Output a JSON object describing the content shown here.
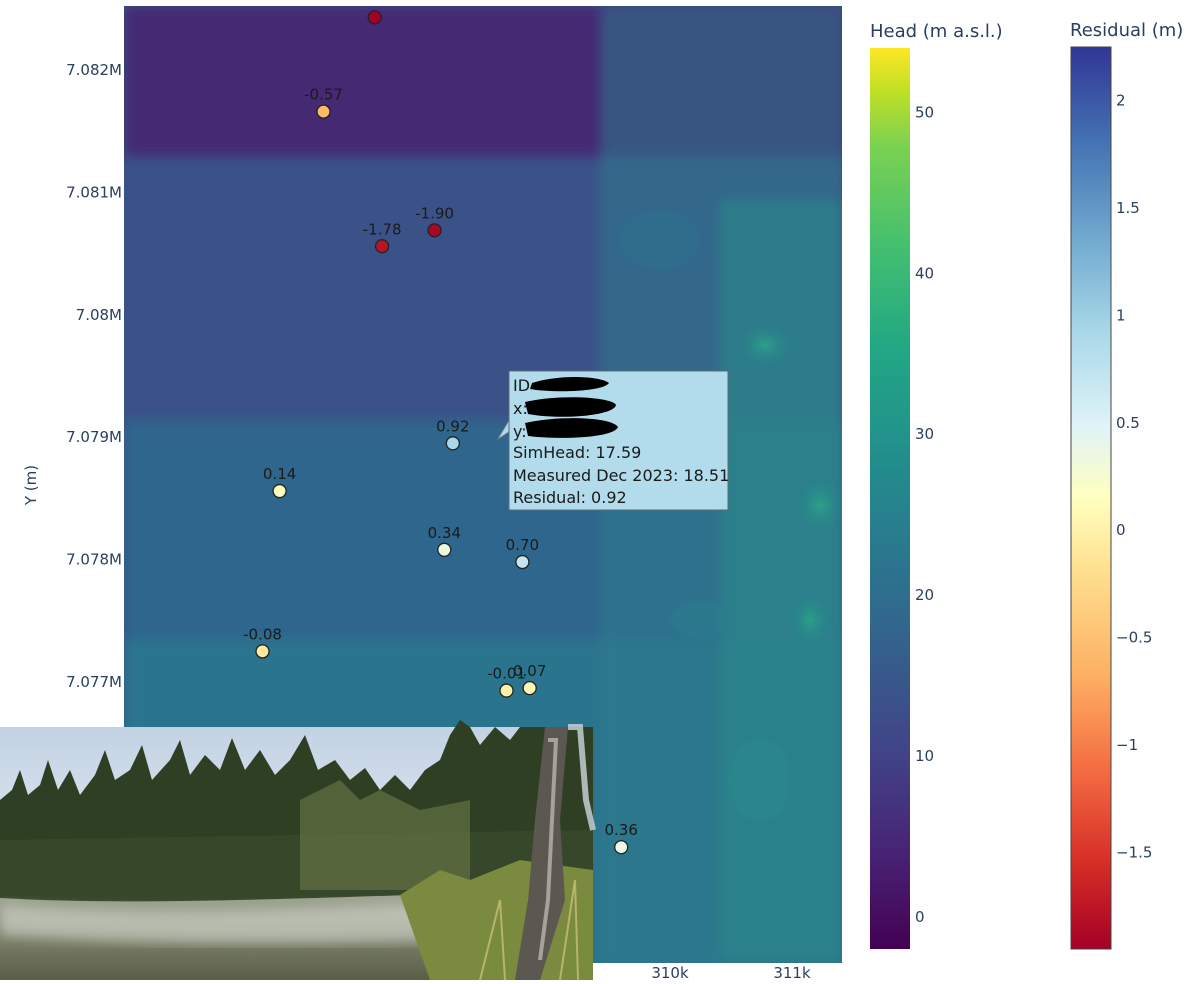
{
  "chart_data": [
    {
      "type": "heatmap",
      "title": "",
      "xlabel": "",
      "ylabel": "Y (m)",
      "y_ticks": [
        "7.082M",
        "7.081M",
        "7.08M",
        "7.079M",
        "7.078M",
        "7.077M"
      ],
      "y_tick_values": [
        7082000,
        7081000,
        7080000,
        7079000,
        7078000,
        7077000
      ],
      "x_ticks": [
        "310k",
        "311k"
      ],
      "x_tick_values": [
        310000,
        311000
      ],
      "colorbar": {
        "title": "Head (m a.s.l.)",
        "colorscale": "Viridis",
        "range": [
          -2,
          54
        ],
        "ticks": [
          "0",
          "10",
          "20",
          "30",
          "40",
          "50"
        ],
        "tick_values": [
          0,
          10,
          20,
          30,
          40,
          50
        ]
      }
    },
    {
      "type": "scatter",
      "name": "wells",
      "colorbar": {
        "title": "Residual (m)",
        "colorscale": "Spectral",
        "range": [
          -1.95,
          2.25
        ],
        "ticks": [
          "2",
          "1.5",
          "1",
          "0.5",
          "0",
          "−0.5",
          "−1",
          "−1.5"
        ],
        "tick_values": [
          2,
          1.5,
          1,
          0.5,
          0,
          -0.5,
          -1,
          -1.5
        ]
      },
      "points": [
        {
          "x": 307580,
          "y": 7082430,
          "residual": -1.95,
          "label": ""
        },
        {
          "x": 307160,
          "y": 7081660,
          "residual": -0.57,
          "label": "-0.57"
        },
        {
          "x": 307640,
          "y": 7080560,
          "residual": -1.78,
          "label": "-1.78"
        },
        {
          "x": 308070,
          "y": 7080690,
          "residual": -1.9,
          "label": "-1.90"
        },
        {
          "x": 308220,
          "y": 7078950,
          "residual": 0.92,
          "label": "0.92"
        },
        {
          "x": 306800,
          "y": 7078560,
          "residual": 0.14,
          "label": "0.14"
        },
        {
          "x": 308150,
          "y": 7078080,
          "residual": 0.34,
          "label": "0.34"
        },
        {
          "x": 308790,
          "y": 7077980,
          "residual": 0.7,
          "label": "0.70"
        },
        {
          "x": 306660,
          "y": 7077250,
          "residual": -0.08,
          "label": "-0.08"
        },
        {
          "x": 308660,
          "y": 7076930,
          "residual": -0.01,
          "label": "-0.01"
        },
        {
          "x": 308850,
          "y": 7076950,
          "residual": 0.07,
          "label": "0.07"
        },
        {
          "x": 309600,
          "y": 7075650,
          "residual": 0.36,
          "label": "0.36"
        }
      ]
    }
  ],
  "hover": {
    "id_label": "ID",
    "x_label": "x:",
    "y_label": "y:",
    "simhead": "SimHead: 17.59",
    "measured": "Measured Dec 2023: 18.51",
    "residual": "Residual: 0.92"
  }
}
